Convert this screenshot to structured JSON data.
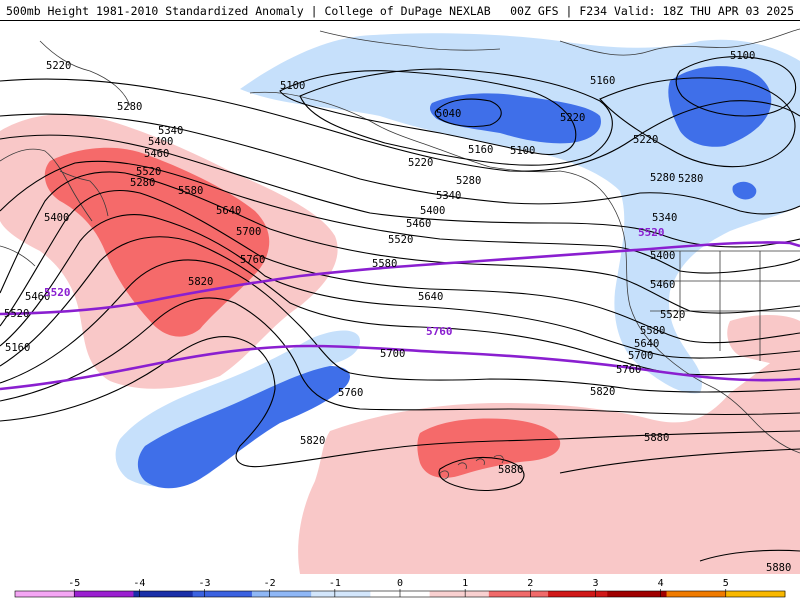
{
  "header": {
    "title": "500mb Height 1981-2010 Standardized Anomaly | College of DuPage NEXLAB",
    "run_info": "00Z GFS | F234 Valid: 18Z THU APR 03 2025"
  },
  "map": {
    "height_contours": [
      "5100",
      "5040",
      "5160",
      "5100",
      "5160",
      "5220",
      "5280",
      "5220",
      "5280",
      "5340",
      "5400",
      "5460",
      "5520",
      "5400",
      "5460",
      "5520",
      "5580",
      "5640",
      "5700",
      "5760",
      "5820",
      "5280",
      "5340",
      "5400",
      "5460",
      "5520",
      "5580",
      "5640",
      "5700",
      "5760",
      "5820",
      "5880",
      "5880",
      "5880",
      "5220",
      "5280",
      "5340",
      "5400",
      "5460",
      "5520",
      "5580",
      "5640",
      "5700",
      "5760",
      "5820",
      "5100",
      "5160",
      "5220",
      "5280"
    ],
    "highlighted_contours": [
      "5520",
      "5760",
      "5520",
      "5760"
    ],
    "colors": {
      "neg1": "#c6e0fb",
      "neg2": "#3f6fe9",
      "pos1": "#f9c8c8",
      "pos2": "#f56a6a",
      "highlight": "#8a1fd0",
      "contour": "#000000"
    }
  },
  "colorbar": {
    "ticks": [
      "-5",
      "-4",
      "-3",
      "-2",
      "-1",
      "0",
      "1",
      "2",
      "3",
      "4",
      "5"
    ],
    "colors": [
      "#f4a6f4",
      "#9b1fd0",
      "#1a2fa8",
      "#3b62e0",
      "#8fb7f5",
      "#d3e6fb",
      "#ffffff",
      "#f9d0d0",
      "#f06a6a",
      "#d01818",
      "#a00000",
      "#f07b00",
      "#f9b800"
    ]
  }
}
